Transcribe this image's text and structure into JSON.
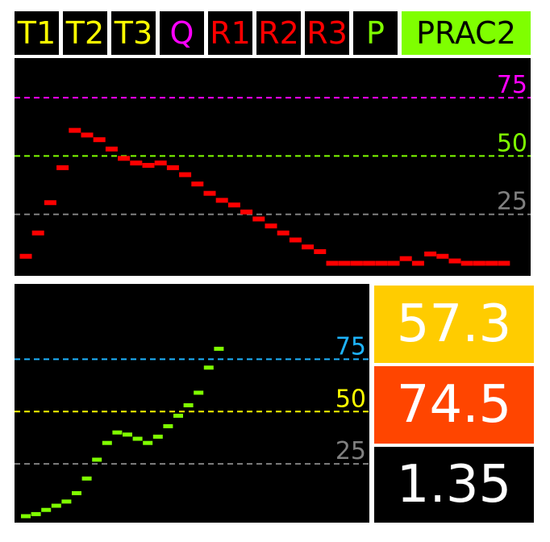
{
  "tabs": [
    {
      "label": "T1",
      "color": "#ffff00",
      "active": false
    },
    {
      "label": "T2",
      "color": "#ffff00",
      "active": false
    },
    {
      "label": "T3",
      "color": "#ffff00",
      "active": false
    },
    {
      "label": "Q",
      "color": "#ff00ff",
      "active": false
    },
    {
      "label": "R1",
      "color": "#ff0000",
      "active": false
    },
    {
      "label": "R2",
      "color": "#ff0000",
      "active": false
    },
    {
      "label": "R3",
      "color": "#ff0000",
      "active": false
    },
    {
      "label": "P",
      "color": "#7fff00",
      "active": false
    },
    {
      "label": "PRAC2",
      "color": "#000000",
      "active": true
    }
  ],
  "chart_data": [
    {
      "type": "scatter",
      "name_id": "top-plot",
      "marker_color": "#ff0000",
      "ylim": [
        0,
        92
      ],
      "reference_lines": [
        {
          "value": 75,
          "label": "75",
          "color": "#ff00ff"
        },
        {
          "value": 50,
          "label": "50",
          "color": "#7fff00"
        },
        {
          "value": 25,
          "label": "25",
          "color": "#808080"
        }
      ],
      "x": [
        1,
        2,
        3,
        4,
        5,
        6,
        7,
        8,
        9,
        10,
        11,
        12,
        13,
        14,
        15,
        16,
        17,
        18,
        19,
        20,
        21,
        22,
        23,
        24,
        25,
        26,
        27,
        28,
        29,
        30,
        31,
        32,
        33,
        34,
        35,
        36,
        37,
        38,
        39,
        40
      ],
      "values": [
        7,
        17,
        30,
        45,
        61,
        59,
        57,
        53,
        49,
        47,
        46,
        47,
        45,
        42,
        38,
        34,
        31,
        29,
        26,
        23,
        20,
        17,
        14,
        11,
        9,
        4,
        4,
        4,
        4,
        4,
        4,
        6,
        4,
        8,
        7,
        5,
        4,
        4,
        4,
        4
      ]
    },
    {
      "type": "scatter",
      "name_id": "bottom-plot",
      "marker_color": "#7fff00",
      "ylim": [
        0,
        111
      ],
      "reference_lines": [
        {
          "value": 75,
          "label": "75",
          "color": "#1eb4ff"
        },
        {
          "value": 50,
          "label": "50",
          "color": "#ffff00"
        },
        {
          "value": 25,
          "label": "25",
          "color": "#808080"
        }
      ],
      "x": [
        1,
        2,
        3,
        4,
        5,
        6,
        7,
        8,
        9,
        10,
        11,
        12,
        13,
        14,
        15,
        16,
        17,
        18,
        19,
        20
      ],
      "values": [
        0,
        1,
        3,
        5,
        7,
        11,
        18,
        27,
        35,
        40,
        39,
        37,
        35,
        38,
        43,
        48,
        53,
        59,
        71,
        80
      ]
    }
  ],
  "readouts": [
    {
      "value": "57.3",
      "bg": "#ffcc00"
    },
    {
      "value": "74.5",
      "bg": "#ff4500"
    },
    {
      "value": "1.35",
      "bg": "#000000"
    }
  ]
}
